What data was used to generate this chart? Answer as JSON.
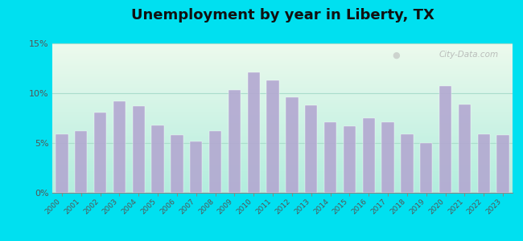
{
  "years": [
    2000,
    2001,
    2002,
    2003,
    2004,
    2005,
    2006,
    2007,
    2008,
    2009,
    2010,
    2011,
    2012,
    2013,
    2014,
    2015,
    2016,
    2017,
    2018,
    2019,
    2020,
    2021,
    2022,
    2023
  ],
  "values": [
    5.9,
    6.2,
    8.1,
    9.2,
    8.7,
    6.8,
    5.8,
    5.2,
    6.2,
    10.3,
    12.1,
    11.3,
    9.6,
    8.8,
    7.1,
    6.7,
    7.5,
    7.1,
    5.9,
    5.0,
    10.7,
    8.9,
    5.9,
    5.8
  ],
  "bar_color": "#b3a8d1",
  "background_outer": "#00e0f0",
  "bg_top": "#edfaee",
  "bg_bottom": "#b3eedd",
  "title": "Unemployment by year in Liberty, TX",
  "title_fontsize": 13,
  "ylim": [
    0,
    15
  ],
  "yticks": [
    0,
    5,
    10,
    15
  ],
  "ytick_labels": [
    "0%",
    "5%",
    "10%",
    "15%"
  ],
  "watermark_text": "City-Data.com",
  "axis_color": "#888888",
  "grid_color": "#aaddcc",
  "tick_color": "#555555"
}
